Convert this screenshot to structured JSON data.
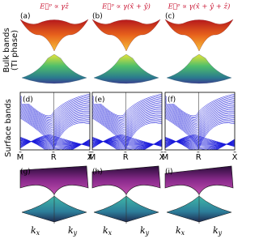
{
  "row_labels": {
    "bulk": [
      "Bulk bands",
      "(TI phase)"
    ],
    "surface": "Surface bands"
  },
  "columns": [
    {
      "header": "E⃗ᵖ ∝ γẑ",
      "panels": [
        "(a)",
        "(d)",
        "(g)"
      ]
    },
    {
      "header": "E⃗ᵖ ∝ γ(x̂ + ŷ)",
      "panels": [
        "(b)",
        "(e)",
        "(h)"
      ]
    },
    {
      "header": "E⃗ᵖ ∝ γ(x̂ + ŷ + ẑ)",
      "panels": [
        "(c)",
        "(f)",
        "(i)"
      ]
    }
  ],
  "band_axis_labels": [
    "M̄",
    "R̄",
    "X̄"
  ],
  "k_labels": [
    {
      "base": "k",
      "sub": "x"
    },
    {
      "base": "k",
      "sub": "y"
    }
  ]
}
